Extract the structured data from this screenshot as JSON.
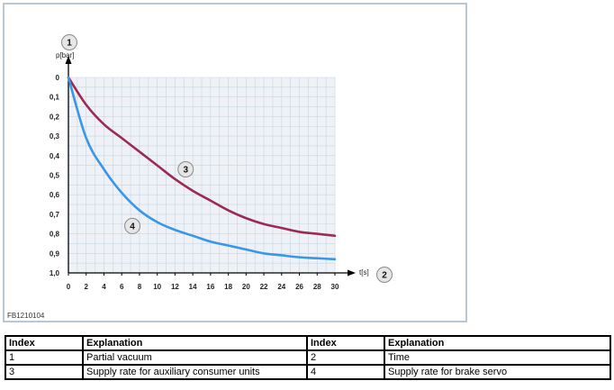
{
  "chart_data": {
    "type": "line",
    "figure_code": "FB1210104",
    "ylabel": "p[bar]",
    "xlabel": "t[s]",
    "x_ticks": [
      "0",
      "2",
      "4",
      "6",
      "8",
      "10",
      "12",
      "14",
      "16",
      "18",
      "20",
      "22",
      "24",
      "26",
      "28",
      "30"
    ],
    "y_ticks": [
      "0",
      "0,1",
      "0,2",
      "0,3",
      "0,4",
      "0,5",
      "0,6",
      "0,7",
      "0,8",
      "0,9",
      "1,0"
    ],
    "xlim": [
      0,
      30
    ],
    "ylim": [
      0,
      1.0
    ],
    "y_inverted": true,
    "grid": true,
    "callouts": {
      "y_axis": "1",
      "x_axis": "2",
      "series_a": "3",
      "series_b": "4"
    },
    "colors": {
      "series_a": "#9b2a55",
      "series_b": "#3a96e6",
      "grid": "#c8d4e0",
      "plot_bg": "#eef2f6",
      "callout_fill": "#e6e6e6"
    },
    "series": [
      {
        "x": [
          0,
          2,
          4,
          6,
          8,
          10,
          12,
          14,
          16,
          18,
          20,
          22,
          24,
          26,
          28,
          30
        ],
        "values": [
          0.0,
          0.14,
          0.24,
          0.31,
          0.38,
          0.45,
          0.52,
          0.58,
          0.63,
          0.68,
          0.72,
          0.75,
          0.77,
          0.79,
          0.8,
          0.81
        ]
      },
      {
        "x": [
          0,
          2,
          4,
          6,
          8,
          10,
          12,
          14,
          16,
          18,
          20,
          22,
          24,
          26,
          28,
          30
        ],
        "values": [
          0.0,
          0.31,
          0.47,
          0.59,
          0.68,
          0.74,
          0.78,
          0.81,
          0.84,
          0.86,
          0.88,
          0.9,
          0.91,
          0.92,
          0.925,
          0.93
        ]
      }
    ]
  },
  "table": {
    "headers": [
      "Index",
      "Explanation",
      "Index",
      "Explanation"
    ],
    "rows": [
      [
        "1",
        "Partial vacuum",
        "2",
        "Time"
      ],
      [
        "3",
        "Supply rate for auxiliary consumer units",
        "4",
        "Supply rate for brake servo"
      ]
    ]
  }
}
